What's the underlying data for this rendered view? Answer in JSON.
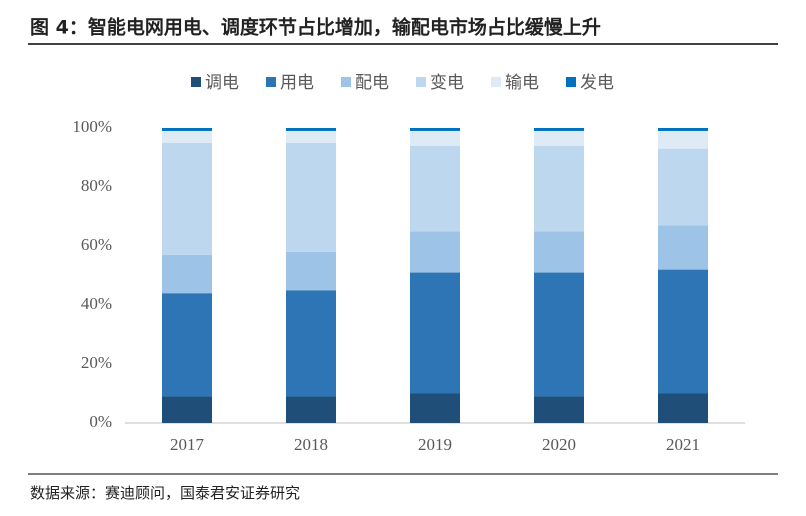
{
  "chart_data": {
    "type": "stacked_bar",
    "title": "图 4：智能电网用电、调度环节占比增加，输配电市场占比缓慢上升",
    "source": "数据来源：赛迪顾问，国泰君安证券研究",
    "categories": [
      "2017",
      "2018",
      "2019",
      "2020",
      "2021"
    ],
    "series": [
      {
        "name": "调电",
        "color": "#1f4e79",
        "values": [
          9,
          9,
          10,
          9,
          10
        ]
      },
      {
        "name": "用电",
        "color": "#2e75b6",
        "values": [
          35,
          36,
          41,
          42,
          42
        ]
      },
      {
        "name": "配电",
        "color": "#9dc3e6",
        "values": [
          13,
          13,
          14,
          14,
          15
        ]
      },
      {
        "name": "变电",
        "color": "#bdd7ee",
        "values": [
          38,
          37,
          29,
          29,
          26
        ]
      },
      {
        "name": "输电",
        "color": "#deebf7",
        "values": [
          4,
          4,
          5,
          5,
          6
        ]
      },
      {
        "name": "发电",
        "color": "#0070c0",
        "values": [
          1,
          1,
          1,
          1,
          1
        ]
      }
    ],
    "ylim": [
      0,
      100
    ],
    "yticks": [
      {
        "value": 0,
        "label": "0%"
      },
      {
        "value": 20,
        "label": "20%"
      },
      {
        "value": 40,
        "label": "40%"
      },
      {
        "value": 60,
        "label": "60%"
      },
      {
        "value": 80,
        "label": "80%"
      },
      {
        "value": 100,
        "label": "100%"
      }
    ],
    "grid": false,
    "legend": "top"
  }
}
